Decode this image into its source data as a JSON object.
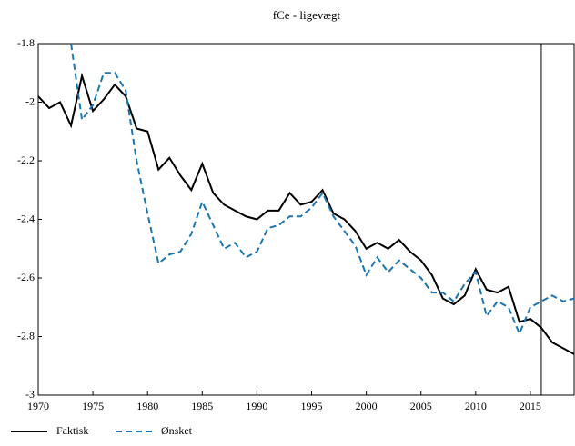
{
  "chart_data": {
    "type": "line",
    "title": "fCe - ligevægt",
    "x": [
      1970,
      1971,
      1972,
      1973,
      1974,
      1975,
      1976,
      1977,
      1978,
      1979,
      1980,
      1981,
      1982,
      1983,
      1984,
      1985,
      1986,
      1987,
      1988,
      1989,
      1990,
      1991,
      1992,
      1993,
      1994,
      1995,
      1996,
      1997,
      1998,
      1999,
      2000,
      2001,
      2002,
      2003,
      2004,
      2005,
      2006,
      2007,
      2008,
      2009,
      2010,
      2011,
      2012,
      2013,
      2014,
      2015,
      2016,
      2017,
      2018,
      2019
    ],
    "series": [
      {
        "name": "Faktisk",
        "color": "#000000",
        "dash": false,
        "values": [
          -1.98,
          -2.02,
          -2.0,
          -2.08,
          -1.91,
          -2.03,
          -1.99,
          -1.94,
          -1.98,
          -2.09,
          -2.1,
          -2.23,
          -2.19,
          -2.25,
          -2.3,
          -2.21,
          -2.31,
          -2.35,
          -2.37,
          -2.39,
          -2.4,
          -2.37,
          -2.37,
          -2.31,
          -2.35,
          -2.34,
          -2.3,
          -2.38,
          -2.4,
          -2.44,
          -2.5,
          -2.48,
          -2.5,
          -2.47,
          -2.51,
          -2.54,
          -2.59,
          -2.67,
          -2.69,
          -2.66,
          -2.57,
          -2.64,
          -2.65,
          -2.63,
          -2.75,
          -2.74,
          -2.77,
          -2.82,
          -2.84,
          -2.86
        ]
      },
      {
        "name": "Ønsket",
        "color": "#1a75b0",
        "dash": true,
        "values": [
          null,
          null,
          null,
          -1.8,
          -2.06,
          -2.01,
          -1.9,
          -1.9,
          -1.96,
          -2.2,
          -2.38,
          -2.55,
          -2.52,
          -2.51,
          -2.45,
          -2.34,
          -2.42,
          -2.5,
          -2.48,
          -2.53,
          -2.51,
          -2.43,
          -2.42,
          -2.39,
          -2.39,
          -2.36,
          -2.31,
          -2.39,
          -2.44,
          -2.49,
          -2.59,
          -2.53,
          -2.58,
          -2.54,
          -2.57,
          -2.6,
          -2.65,
          -2.65,
          -2.68,
          -2.62,
          -2.58,
          -2.73,
          -2.68,
          -2.7,
          -2.79,
          -2.7,
          -2.68,
          -2.66,
          -2.68,
          -2.67
        ]
      }
    ],
    "xlim": [
      1970,
      2019
    ],
    "xticks": [
      1970,
      1975,
      1980,
      1985,
      1990,
      1995,
      2000,
      2005,
      2010,
      2015
    ],
    "ylim": [
      -3,
      -1.8
    ],
    "yticks": [
      -3,
      -2.8,
      -2.6,
      -2.4,
      -2.2,
      -2,
      -1.8
    ],
    "vline": 2016,
    "legend": "bottom-left"
  }
}
